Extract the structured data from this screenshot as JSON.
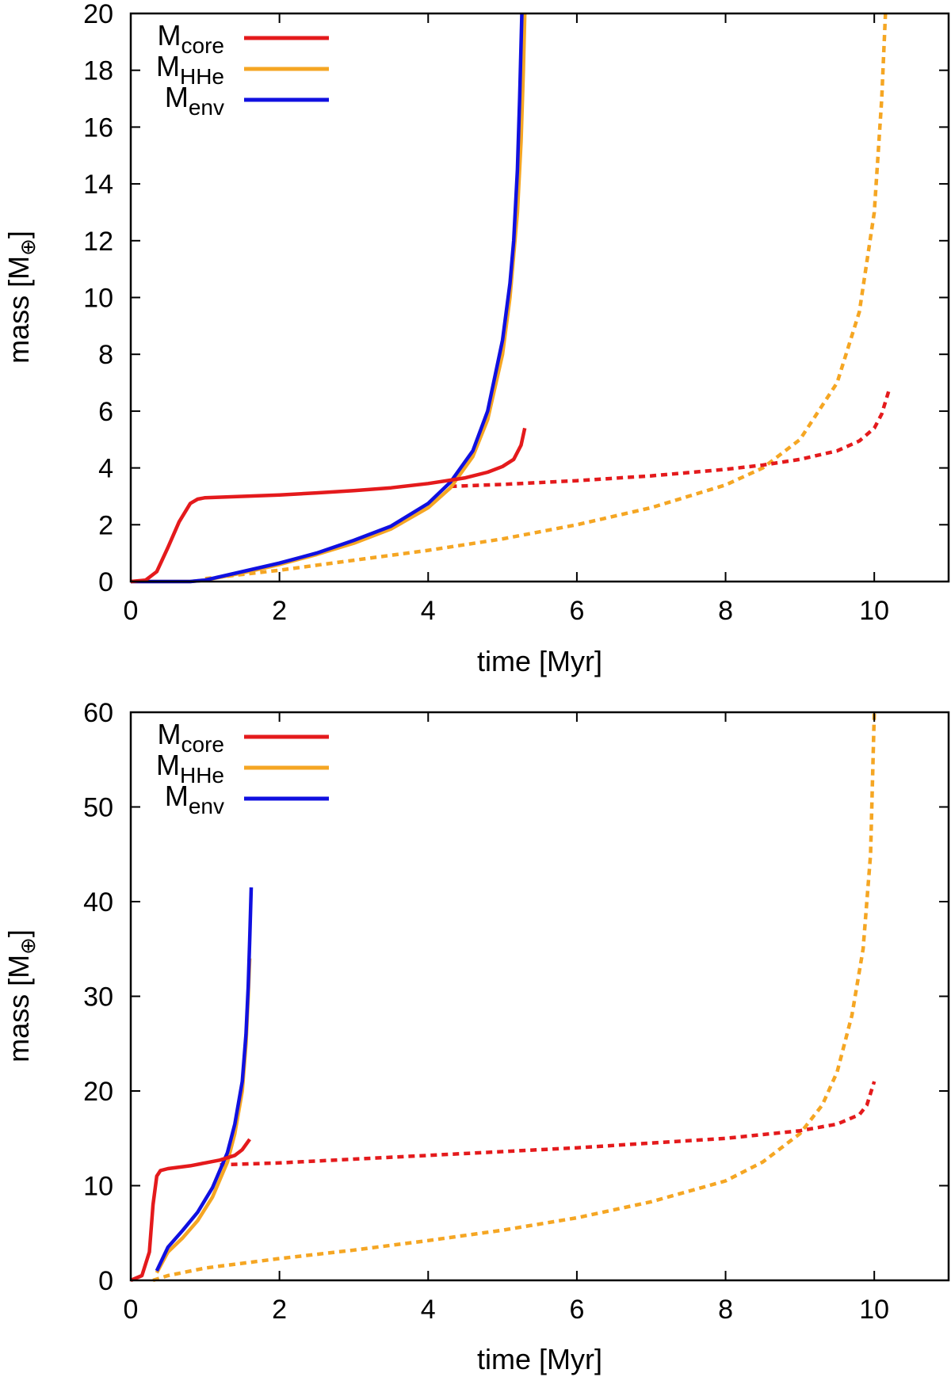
{
  "chart_data": [
    {
      "type": "line",
      "panel": "top",
      "xlabel": "time [Myr]",
      "ylabel_main": "mass [M",
      "ylabel_sym": "⊕",
      "ylabel_close": "]",
      "xlim": [
        0,
        11
      ],
      "ylim": [
        0,
        20
      ],
      "xticks": [
        0,
        2,
        4,
        6,
        8,
        10
      ],
      "yticks": [
        0,
        2,
        4,
        6,
        8,
        10,
        12,
        14,
        16,
        18,
        20
      ],
      "legend_position": "top-left",
      "legend": [
        {
          "base": "M",
          "sub": "core",
          "color": "#e41a1c"
        },
        {
          "base": "M",
          "sub": "HHe",
          "color": "#f5a623"
        },
        {
          "base": "M",
          "sub": "env",
          "color": "#1010e0"
        }
      ],
      "series": [
        {
          "name": "M_core",
          "color": "#e41a1c",
          "style": "solid",
          "x": [
            0,
            0.2,
            0.35,
            0.5,
            0.65,
            0.8,
            0.9,
            1.0,
            1.5,
            2,
            2.5,
            3,
            3.5,
            4,
            4.5,
            4.8,
            5.0,
            5.15,
            5.25,
            5.3
          ],
          "y": [
            0,
            0.05,
            0.35,
            1.2,
            2.1,
            2.75,
            2.9,
            2.95,
            3.0,
            3.05,
            3.12,
            3.2,
            3.3,
            3.45,
            3.65,
            3.85,
            4.05,
            4.3,
            4.8,
            5.4
          ]
        },
        {
          "name": "M_HHe",
          "color": "#f5a623",
          "style": "solid",
          "x": [
            0,
            0.8,
            1.0,
            1.5,
            2,
            2.5,
            3,
            3.5,
            4,
            4.3,
            4.6,
            4.8,
            5.0,
            5.1,
            5.2,
            5.25,
            5.28,
            5.3
          ],
          "y": [
            0,
            0,
            0.05,
            0.3,
            0.6,
            0.95,
            1.35,
            1.85,
            2.6,
            3.3,
            4.4,
            5.7,
            8.0,
            10.0,
            13.0,
            15.5,
            18.0,
            20.0
          ]
        },
        {
          "name": "M_env",
          "color": "#1010e0",
          "style": "solid",
          "x": [
            0,
            0.8,
            1.0,
            1.5,
            2,
            2.5,
            3,
            3.5,
            4,
            4.3,
            4.6,
            4.8,
            5.0,
            5.1,
            5.15,
            5.2,
            5.23,
            5.26
          ],
          "y": [
            0,
            0,
            0.05,
            0.35,
            0.65,
            1.0,
            1.45,
            1.95,
            2.75,
            3.5,
            4.6,
            6.0,
            8.5,
            10.5,
            12.0,
            14.5,
            17.0,
            20.0
          ]
        },
        {
          "name": "M_core (dashed)",
          "color": "#e41a1c",
          "style": "dashed",
          "x": [
            4.3,
            5,
            6,
            7,
            8,
            8.5,
            9,
            9.5,
            9.8,
            10.0,
            10.1,
            10.2
          ],
          "y": [
            3.35,
            3.42,
            3.55,
            3.72,
            3.95,
            4.1,
            4.3,
            4.6,
            4.95,
            5.4,
            5.9,
            6.75
          ]
        },
        {
          "name": "M_HHe (dashed)",
          "color": "#f5a623",
          "style": "dashed",
          "x": [
            1.0,
            2,
            3,
            4,
            5,
            6,
            7,
            8,
            8.5,
            9,
            9.5,
            9.8,
            10.0,
            10.1,
            10.15
          ],
          "y": [
            0.1,
            0.4,
            0.75,
            1.1,
            1.5,
            2.0,
            2.6,
            3.4,
            4.0,
            5.0,
            7.0,
            9.5,
            13.0,
            17.0,
            20.0
          ]
        }
      ]
    },
    {
      "type": "line",
      "panel": "bottom",
      "xlabel": "time [Myr]",
      "ylabel_main": "mass [M",
      "ylabel_sym": "⊕",
      "ylabel_close": "]",
      "xlim": [
        0,
        11
      ],
      "ylim": [
        0,
        60
      ],
      "xticks": [
        0,
        2,
        4,
        6,
        8,
        10
      ],
      "yticks": [
        0,
        10,
        20,
        30,
        40,
        50,
        60
      ],
      "legend_position": "top-left",
      "legend": [
        {
          "base": "M",
          "sub": "core",
          "color": "#e41a1c"
        },
        {
          "base": "M",
          "sub": "HHe",
          "color": "#f5a623"
        },
        {
          "base": "M",
          "sub": "env",
          "color": "#1010e0"
        }
      ],
      "series": [
        {
          "name": "M_core",
          "color": "#e41a1c",
          "style": "solid",
          "x": [
            0,
            0.15,
            0.25,
            0.3,
            0.35,
            0.4,
            0.5,
            0.8,
            1.0,
            1.2,
            1.4,
            1.5,
            1.6
          ],
          "y": [
            0,
            0.5,
            3.0,
            8.0,
            11.0,
            11.6,
            11.8,
            12.1,
            12.4,
            12.7,
            13.2,
            13.8,
            14.9
          ]
        },
        {
          "name": "M_HHe",
          "color": "#f5a623",
          "style": "solid",
          "x": [
            0.35,
            0.5,
            0.7,
            0.9,
            1.1,
            1.3,
            1.4,
            1.5,
            1.55,
            1.58,
            1.6
          ],
          "y": [
            0.8,
            3.0,
            4.5,
            6.3,
            8.8,
            12.5,
            15.5,
            20.0,
            25.0,
            30.0,
            34.0
          ]
        },
        {
          "name": "M_env",
          "color": "#1010e0",
          "style": "solid",
          "x": [
            0.35,
            0.5,
            0.7,
            0.9,
            1.1,
            1.3,
            1.4,
            1.5,
            1.55,
            1.58,
            1.6,
            1.62
          ],
          "y": [
            1.0,
            3.5,
            5.3,
            7.2,
            9.8,
            13.5,
            16.5,
            21.0,
            26.0,
            31.0,
            36.0,
            41.5
          ]
        },
        {
          "name": "M_core (dashed)",
          "color": "#e41a1c",
          "style": "dashed",
          "x": [
            1.2,
            2,
            3,
            4,
            5,
            6,
            7,
            8,
            9,
            9.5,
            9.8,
            9.9,
            10.0
          ],
          "y": [
            12.2,
            12.4,
            12.8,
            13.2,
            13.6,
            14.0,
            14.5,
            15.0,
            15.8,
            16.5,
            17.5,
            18.5,
            21.0
          ]
        },
        {
          "name": "M_HHe (dashed)",
          "color": "#f5a623",
          "style": "dashed",
          "x": [
            0.3,
            0.5,
            1,
            2,
            3,
            4,
            5,
            6,
            7,
            8,
            8.5,
            9,
            9.3,
            9.5,
            9.7,
            9.85,
            9.95,
            10.0
          ],
          "y": [
            0,
            0.5,
            1.3,
            2.3,
            3.2,
            4.2,
            5.3,
            6.6,
            8.3,
            10.5,
            12.5,
            15.5,
            18.5,
            22.0,
            28.0,
            35.0,
            45.0,
            60.0
          ]
        }
      ]
    }
  ]
}
